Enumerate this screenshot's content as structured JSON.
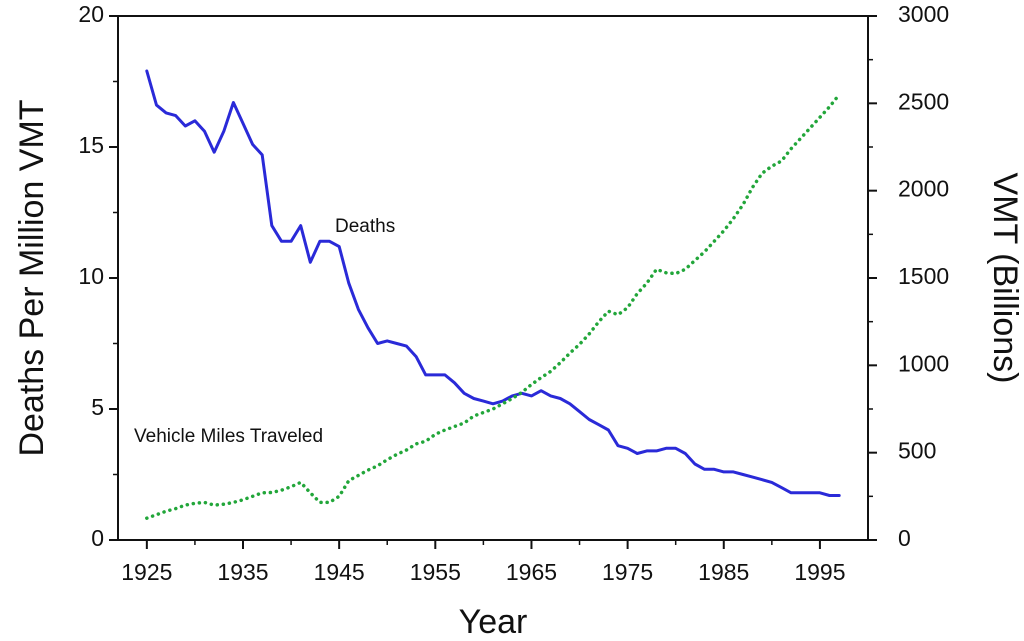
{
  "chart_data": {
    "type": "line",
    "xlabel": "Year",
    "ylabel_left": "Deaths Per Million VMT",
    "ylabel_right": "VMT (Billions)",
    "xlim": [
      1922,
      2000
    ],
    "ylim_left": [
      0,
      20
    ],
    "ylim_right": [
      0,
      3000
    ],
    "x_ticks": [
      1925,
      1935,
      1945,
      1955,
      1965,
      1975,
      1985,
      1995
    ],
    "y_ticks_left": [
      0,
      5,
      10,
      15,
      20
    ],
    "y_ticks_right": [
      0,
      500,
      1000,
      1500,
      2000,
      2500,
      3000
    ],
    "grid": false,
    "series": [
      {
        "name": "Deaths",
        "axis": "left",
        "color": "#2a2ad8",
        "style": "solid",
        "label": "Deaths",
        "points": [
          [
            1925,
            17.9
          ],
          [
            1926,
            16.6
          ],
          [
            1927,
            16.3
          ],
          [
            1928,
            16.2
          ],
          [
            1929,
            15.8
          ],
          [
            1930,
            16.0
          ],
          [
            1931,
            15.6
          ],
          [
            1932,
            14.8
          ],
          [
            1933,
            15.6
          ],
          [
            1934,
            16.7
          ],
          [
            1935,
            15.9
          ],
          [
            1936,
            15.1
          ],
          [
            1937,
            14.7
          ],
          [
            1938,
            12.0
          ],
          [
            1939,
            11.4
          ],
          [
            1940,
            11.4
          ],
          [
            1941,
            12.0
          ],
          [
            1942,
            10.6
          ],
          [
            1943,
            11.4
          ],
          [
            1944,
            11.4
          ],
          [
            1945,
            11.2
          ],
          [
            1946,
            9.8
          ],
          [
            1947,
            8.8
          ],
          [
            1948,
            8.1
          ],
          [
            1949,
            7.5
          ],
          [
            1950,
            7.6
          ],
          [
            1951,
            7.5
          ],
          [
            1952,
            7.4
          ],
          [
            1953,
            7.0
          ],
          [
            1954,
            6.3
          ],
          [
            1955,
            6.3
          ],
          [
            1956,
            6.3
          ],
          [
            1957,
            6.0
          ],
          [
            1958,
            5.6
          ],
          [
            1959,
            5.4
          ],
          [
            1960,
            5.3
          ],
          [
            1961,
            5.2
          ],
          [
            1962,
            5.3
          ],
          [
            1963,
            5.5
          ],
          [
            1964,
            5.6
          ],
          [
            1965,
            5.5
          ],
          [
            1966,
            5.7
          ],
          [
            1967,
            5.5
          ],
          [
            1968,
            5.4
          ],
          [
            1969,
            5.2
          ],
          [
            1970,
            4.9
          ],
          [
            1971,
            4.6
          ],
          [
            1972,
            4.4
          ],
          [
            1973,
            4.2
          ],
          [
            1974,
            3.6
          ],
          [
            1975,
            3.5
          ],
          [
            1976,
            3.3
          ],
          [
            1977,
            3.4
          ],
          [
            1978,
            3.4
          ],
          [
            1979,
            3.5
          ],
          [
            1980,
            3.5
          ],
          [
            1981,
            3.3
          ],
          [
            1982,
            2.9
          ],
          [
            1983,
            2.7
          ],
          [
            1984,
            2.7
          ],
          [
            1985,
            2.6
          ],
          [
            1986,
            2.6
          ],
          [
            1987,
            2.5
          ],
          [
            1988,
            2.4
          ],
          [
            1989,
            2.3
          ],
          [
            1990,
            2.2
          ],
          [
            1991,
            2.0
          ],
          [
            1992,
            1.8
          ],
          [
            1993,
            1.8
          ],
          [
            1994,
            1.8
          ],
          [
            1995,
            1.8
          ],
          [
            1996,
            1.7
          ],
          [
            1997,
            1.7
          ]
        ]
      },
      {
        "name": "Vehicle Miles Traveled",
        "axis": "right",
        "color": "#22a63a",
        "style": "dotted",
        "label": "Vehicle Miles Traveled",
        "points": [
          [
            1925,
            125
          ],
          [
            1926,
            145
          ],
          [
            1927,
            165
          ],
          [
            1928,
            180
          ],
          [
            1929,
            200
          ],
          [
            1930,
            210
          ],
          [
            1931,
            215
          ],
          [
            1932,
            200
          ],
          [
            1933,
            205
          ],
          [
            1934,
            215
          ],
          [
            1935,
            230
          ],
          [
            1936,
            250
          ],
          [
            1937,
            270
          ],
          [
            1938,
            272
          ],
          [
            1939,
            285
          ],
          [
            1940,
            305
          ],
          [
            1941,
            330
          ],
          [
            1942,
            270
          ],
          [
            1943,
            215
          ],
          [
            1944,
            215
          ],
          [
            1945,
            250
          ],
          [
            1946,
            340
          ],
          [
            1947,
            370
          ],
          [
            1948,
            400
          ],
          [
            1949,
            425
          ],
          [
            1950,
            460
          ],
          [
            1951,
            490
          ],
          [
            1952,
            515
          ],
          [
            1953,
            550
          ],
          [
            1954,
            565
          ],
          [
            1955,
            605
          ],
          [
            1956,
            630
          ],
          [
            1957,
            650
          ],
          [
            1958,
            670
          ],
          [
            1959,
            710
          ],
          [
            1960,
            730
          ],
          [
            1961,
            750
          ],
          [
            1962,
            780
          ],
          [
            1963,
            810
          ],
          [
            1964,
            845
          ],
          [
            1965,
            890
          ],
          [
            1966,
            930
          ],
          [
            1967,
            965
          ],
          [
            1968,
            1015
          ],
          [
            1969,
            1070
          ],
          [
            1970,
            1120
          ],
          [
            1971,
            1180
          ],
          [
            1972,
            1250
          ],
          [
            1973,
            1310
          ],
          [
            1974,
            1290
          ],
          [
            1975,
            1330
          ],
          [
            1976,
            1410
          ],
          [
            1977,
            1470
          ],
          [
            1978,
            1550
          ],
          [
            1979,
            1530
          ],
          [
            1980,
            1525
          ],
          [
            1981,
            1550
          ],
          [
            1982,
            1600
          ],
          [
            1983,
            1650
          ],
          [
            1984,
            1710
          ],
          [
            1985,
            1770
          ],
          [
            1986,
            1840
          ],
          [
            1987,
            1920
          ],
          [
            1988,
            2020
          ],
          [
            1989,
            2100
          ],
          [
            1990,
            2140
          ],
          [
            1991,
            2170
          ],
          [
            1992,
            2240
          ],
          [
            1993,
            2300
          ],
          [
            1994,
            2360
          ],
          [
            1995,
            2420
          ],
          [
            1996,
            2480
          ],
          [
            1997,
            2550
          ]
        ]
      }
    ]
  }
}
